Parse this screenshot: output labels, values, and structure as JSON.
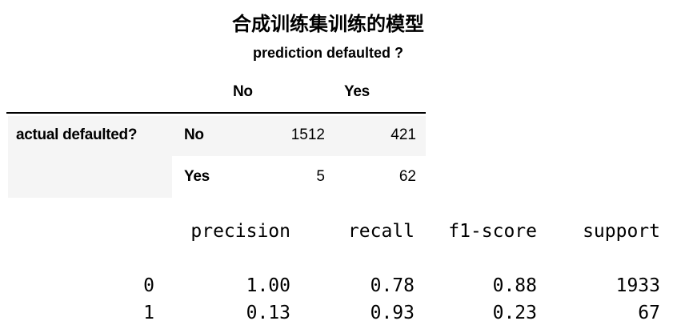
{
  "title": "合成训练集训练的模型",
  "subtitle": "prediction defaulted ?",
  "confusion_table": {
    "column_headers": [
      "No",
      "Yes"
    ],
    "index_name": "actual defaulted?",
    "rows": [
      {
        "label": "No",
        "values": [
          "1512",
          "421"
        ]
      },
      {
        "label": "Yes",
        "values": [
          "5",
          "62"
        ]
      }
    ]
  },
  "classification_report": {
    "headers": [
      "precision",
      "recall",
      "f1-score",
      "support"
    ],
    "rows": [
      {
        "label": "0",
        "precision": "1.00",
        "recall": "0.78",
        "f1": "0.88",
        "support": "1933"
      },
      {
        "label": "1",
        "precision": "0.13",
        "recall": "0.93",
        "f1": "0.23",
        "support": "67"
      }
    ]
  }
}
